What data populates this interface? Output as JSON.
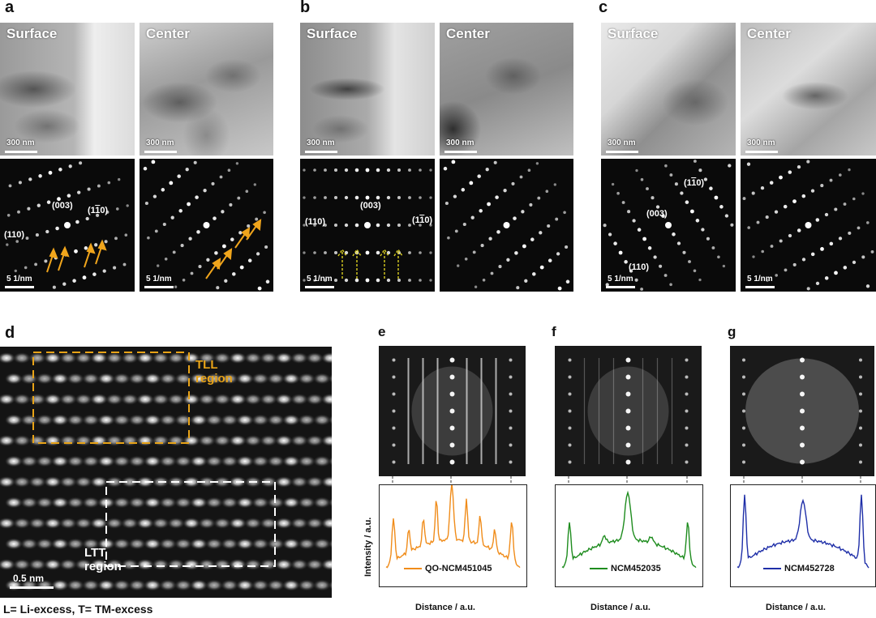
{
  "panels": {
    "a": {
      "letter": "a",
      "surface_label": "Surface",
      "center_label": "Center",
      "tem_scale": "300 nm",
      "saed_scale": "5 1/nm",
      "idx_003": "(003)",
      "idx_110": "(110)",
      "idx_1bar10": "(1",
      "idx_1bar10_b": "1",
      "idx_1bar10_c": "0)"
    },
    "b": {
      "letter": "b",
      "surface_label": "Surface",
      "center_label": "Center",
      "tem_scale": "300 nm",
      "saed_scale": "5 1/nm",
      "idx_003": "(003)",
      "idx_110": "(110)",
      "idx_1bar10": "(1",
      "idx_1bar10_b": "1",
      "idx_1bar10_c": "0)"
    },
    "c": {
      "letter": "c",
      "surface_label": "Surface",
      "center_label": "Center",
      "tem_scale": "300 nm",
      "saed_scale": "5 1/nm",
      "idx_003": "(003)",
      "idx_110": "(110)",
      "idx_1bar10": "(1",
      "idx_1bar10_b": "1",
      "idx_1bar10_c": "0)"
    },
    "d": {
      "letter": "d",
      "tll_line1": "TLL",
      "tll_line2": "region",
      "ltt_line1": "LTT",
      "ltt_line2": "region",
      "scale": "0.5 nm",
      "tll_color": "#e8a317",
      "ltt_color": "#ffffff"
    },
    "e": {
      "letter": "e",
      "legend": "QO-NCM451045",
      "color": "#f08c1a",
      "xlabel": "Distance / a.u.",
      "ylabel": "Intensity / a.u."
    },
    "f": {
      "letter": "f",
      "legend": "NCM452035",
      "color": "#1e8c1e",
      "xlabel": "Distance / a.u."
    },
    "g": {
      "letter": "g",
      "legend": "NCM452728",
      "color": "#1f2fa8",
      "xlabel": "Distance / a.u."
    }
  },
  "caption": "L= Li-excess, T= TM-excess"
}
